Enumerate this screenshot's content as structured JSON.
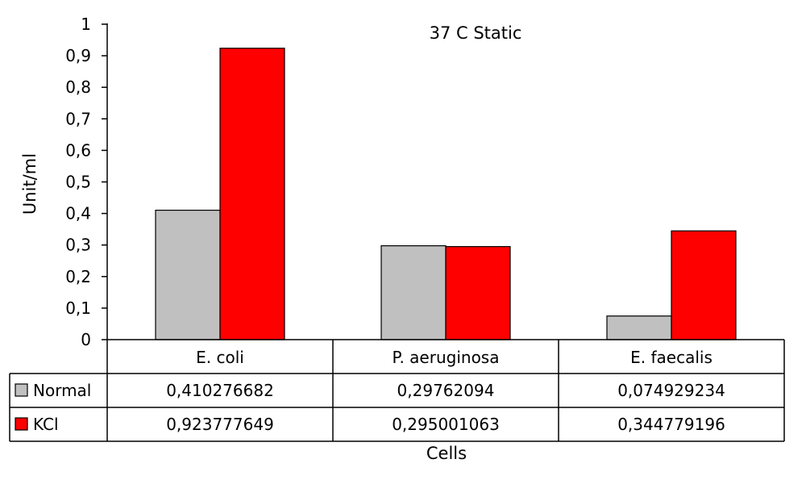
{
  "chart_data": {
    "type": "bar",
    "title": "37 C Static",
    "xlabel": "Cells",
    "ylabel": "Unit/ml",
    "ylim": [
      0,
      1
    ],
    "yticks": [
      {
        "value": 0,
        "label": "0"
      },
      {
        "value": 0.1,
        "label": "0,1"
      },
      {
        "value": 0.2,
        "label": "0,2"
      },
      {
        "value": 0.3,
        "label": "0,3"
      },
      {
        "value": 0.4,
        "label": "0,4"
      },
      {
        "value": 0.5,
        "label": "0,5"
      },
      {
        "value": 0.6,
        "label": "0,6"
      },
      {
        "value": 0.7,
        "label": "0,7"
      },
      {
        "value": 0.8,
        "label": "0,8"
      },
      {
        "value": 0.9,
        "label": "0,9"
      },
      {
        "value": 1,
        "label": "1"
      }
    ],
    "categories": [
      "E. coli",
      "P. aeruginosa",
      "E. faecalis"
    ],
    "series": [
      {
        "name": "Normal",
        "color": "#c0c0c0",
        "values": [
          0.410276682,
          0.29762094,
          0.074929234
        ],
        "table_labels": [
          "0,410276682",
          "0,29762094",
          "0,074929234"
        ]
      },
      {
        "name": "KCl",
        "color": "#ff0000",
        "values": [
          0.923777649,
          0.295001063,
          0.344779196
        ],
        "table_labels": [
          "0,923777649",
          "0,295001063",
          "0,344779196"
        ]
      }
    ],
    "grid": false,
    "legend": "data-table"
  }
}
